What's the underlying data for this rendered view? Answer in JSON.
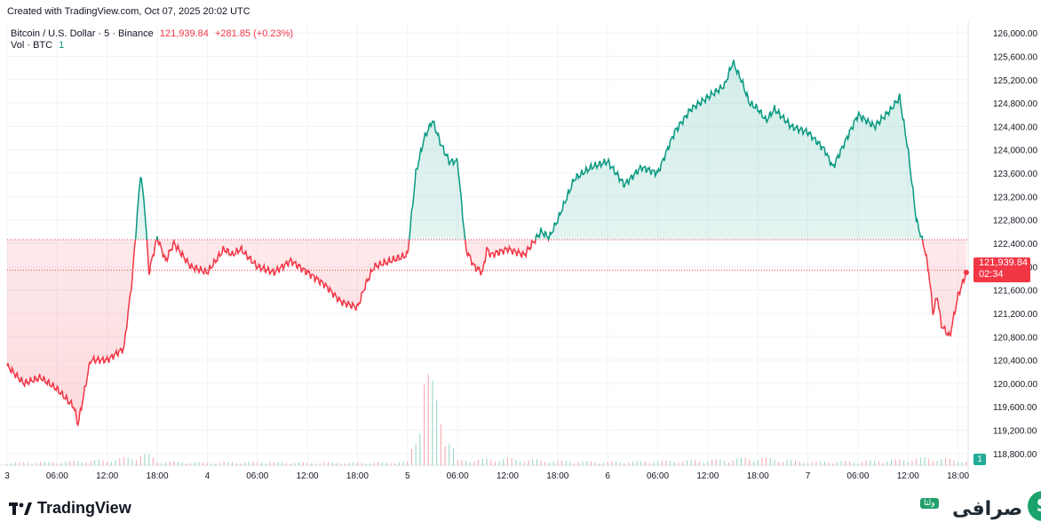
{
  "header": {
    "created_note": "Created with TradingView.com, Oct 07, 2025 20:02 UTC"
  },
  "legend": {
    "symbol": "Bitcoin / U.S. Dollar · 5 · Binance",
    "last_price": "121,939.84",
    "change": "+281.85 (+0.23%)",
    "vol_label": "Vol · BTC",
    "vol_value": "1"
  },
  "price_tag": {
    "price": "121,939.84",
    "countdown": "02:34"
  },
  "volume_tag": {
    "value": "1"
  },
  "footer": {
    "logo_text": "TradingView"
  },
  "brand": {
    "name": "صرافی",
    "badge": "ولتا"
  },
  "colors": {
    "up": "#089981",
    "down": "#f23645",
    "up_fill": "#d9f2ec",
    "down_fill": "#fde0e3",
    "grid": "#f0f3fa"
  },
  "chart_data": {
    "type": "area",
    "title": "Bitcoin / U.S. Dollar · 5 · Binance",
    "baseline": 122460,
    "last_price": 121939.84,
    "ylim": [
      118600,
      126200
    ],
    "y_ticks": [
      "126,000.00",
      "125,600.00",
      "125,200.00",
      "124,800.00",
      "124,400.00",
      "124,000.00",
      "123,600.00",
      "123,200.00",
      "122,800.00",
      "122,400.00",
      "122,000.00",
      "121,600.00",
      "121,200.00",
      "120,800.00",
      "120,400.00",
      "120,000.00",
      "119,600.00",
      "119,200.00",
      "118,800.00"
    ],
    "y_tick_values": [
      126000,
      125600,
      125200,
      124800,
      124400,
      124000,
      123600,
      123200,
      122800,
      122400,
      122000,
      121600,
      121200,
      120800,
      120400,
      120000,
      119600,
      119200,
      118800
    ],
    "x_ticks": [
      "3",
      "06:00",
      "12:00",
      "18:00",
      "4",
      "06:00",
      "12:00",
      "18:00",
      "5",
      "06:00",
      "12:00",
      "18:00",
      "6",
      "06:00",
      "12:00",
      "18:00",
      "7",
      "06:00",
      "12:00",
      "18:00"
    ],
    "x_tick_hours": [
      0,
      6,
      12,
      18,
      24,
      30,
      36,
      42,
      48,
      54,
      60,
      66,
      72,
      78,
      84,
      90,
      96,
      102,
      108,
      114
    ],
    "series": [
      {
        "name": "BTCUSD",
        "hours": [
          0,
          2,
          4,
          6,
          8,
          8.5,
          10,
          12,
          14,
          15,
          16,
          16.5,
          17,
          18,
          19,
          20,
          22,
          24,
          26,
          27,
          28,
          30,
          32,
          34,
          36,
          38,
          40,
          42,
          43,
          44,
          46,
          48,
          49,
          50,
          51,
          52,
          53,
          54,
          55,
          56,
          57,
          57.5,
          58,
          60,
          62,
          64,
          65,
          66,
          68,
          70,
          72,
          74,
          76,
          78,
          80,
          82,
          84,
          86,
          87,
          88,
          89,
          90,
          91,
          92,
          94,
          96,
          98,
          99,
          100,
          102,
          104,
          106,
          107,
          108,
          109,
          110,
          110.5,
          111,
          111.5,
          112,
          113,
          114,
          115
        ],
        "values": [
          120300,
          120000,
          120100,
          119900,
          119600,
          119300,
          120400,
          120400,
          120600,
          121800,
          123600,
          123000,
          121900,
          122500,
          122100,
          122400,
          122000,
          121900,
          122300,
          122200,
          122300,
          122000,
          121900,
          122100,
          121900,
          121700,
          121400,
          121300,
          121700,
          122000,
          122100,
          122200,
          123600,
          124200,
          124500,
          124100,
          123800,
          123800,
          122300,
          122000,
          121900,
          122300,
          122200,
          122300,
          122200,
          122600,
          122500,
          122800,
          123500,
          123700,
          123800,
          123400,
          123700,
          123600,
          124300,
          124700,
          124900,
          125100,
          125500,
          125200,
          124800,
          124700,
          124500,
          124700,
          124400,
          124300,
          124000,
          123700,
          124000,
          124600,
          124400,
          124700,
          124900,
          124000,
          122800,
          122300,
          121900,
          121200,
          121500,
          121000,
          120800,
          121500,
          121900
        ]
      }
    ],
    "volume": {
      "hours": [
        0,
        6,
        12,
        15,
        16,
        17,
        18,
        24,
        30,
        36,
        42,
        48,
        49,
        50,
        54,
        60,
        66,
        72,
        78,
        84,
        90,
        96,
        102,
        108,
        110,
        112,
        115
      ],
      "values": [
        3,
        4,
        6,
        10,
        14,
        12,
        5,
        3,
        4,
        3,
        3,
        4,
        35,
        120,
        6,
        8,
        5,
        4,
        5,
        6,
        9,
        4,
        5,
        7,
        9,
        8,
        5
      ]
    }
  }
}
